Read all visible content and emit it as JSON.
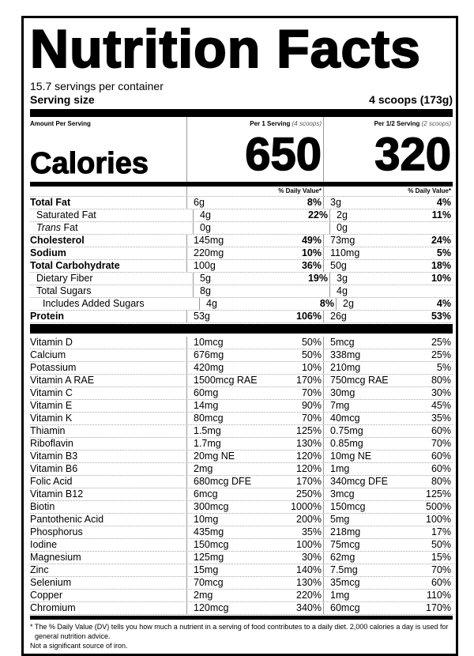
{
  "title": "Nutrition Facts",
  "servings_per_container": "15.7 servings per container",
  "serving_size_label": "Serving size",
  "serving_size_value": "4 scoops (173g)",
  "amount_per_serving": "Amount Per Serving",
  "calories_label": "Calories",
  "col1": {
    "header": "Per 1 Serving",
    "sub": "(4 scoops)",
    "calories": "650"
  },
  "col2": {
    "header": "Per 1/2 Serving",
    "sub": "(2 scoops)",
    "calories": "320"
  },
  "dv_header": "% Daily Value*",
  "nutrients": [
    {
      "name": "Total Fat",
      "bold": true,
      "indent": 0,
      "a": "6g",
      "adv": "8%",
      "b": "3g",
      "bdv": "4%"
    },
    {
      "name": "Saturated Fat",
      "indent": 1,
      "a": "4g",
      "adv": "22%",
      "b": "2g",
      "bdv": "11%"
    },
    {
      "name": "Trans Fat",
      "italic_prefix": "Trans",
      "rest": " Fat",
      "indent": 1,
      "a": "0g",
      "adv": "",
      "b": "0g",
      "bdv": ""
    },
    {
      "name": "Cholesterol",
      "bold": true,
      "indent": 0,
      "a": "145mg",
      "adv": "49%",
      "b": "73mg",
      "bdv": "24%"
    },
    {
      "name": "Sodium",
      "bold": true,
      "indent": 0,
      "a": "220mg",
      "adv": "10%",
      "b": "110mg",
      "bdv": "5%"
    },
    {
      "name": "Total Carbohydrate",
      "bold": true,
      "indent": 0,
      "a": "100g",
      "adv": "36%",
      "b": "50g",
      "bdv": "18%"
    },
    {
      "name": "Dietary Fiber",
      "indent": 1,
      "a": "5g",
      "adv": "19%",
      "b": "3g",
      "bdv": "10%"
    },
    {
      "name": "Total Sugars",
      "indent": 1,
      "a": "8g",
      "adv": "",
      "b": "4g",
      "bdv": ""
    },
    {
      "name": "Includes Added Sugars",
      "indent": 2,
      "a": "4g",
      "adv": "8%",
      "b": "2g",
      "bdv": "4%"
    },
    {
      "name": "Protein",
      "bold": true,
      "indent": 0,
      "a": "53g",
      "adv": "106%",
      "b": "26g",
      "bdv": "53%"
    }
  ],
  "vitamins": [
    [
      "Vitamin D",
      "10mcg",
      "50%",
      "5mcg",
      "25%"
    ],
    [
      "Calcium",
      "676mg",
      "50%",
      "338mg",
      "25%"
    ],
    [
      "Potassium",
      "420mg",
      "10%",
      "210mg",
      "5%"
    ],
    [
      "Vitamin A RAE",
      "1500mcg RAE",
      "170%",
      "750mcg RAE",
      "80%"
    ],
    [
      "Vitamin C",
      "60mg",
      "70%",
      "30mg",
      "30%"
    ],
    [
      "Vitamin E",
      "14mg",
      "90%",
      "7mg",
      "45%"
    ],
    [
      "Vitamin K",
      "80mcg",
      "70%",
      "40mcg",
      "35%"
    ],
    [
      "Thiamin",
      "1.5mg",
      "125%",
      "0.75mg",
      "60%"
    ],
    [
      "Riboflavin",
      "1.7mg",
      "130%",
      "0.85mg",
      "70%"
    ],
    [
      "Vitamin B3",
      "20mg NE",
      "120%",
      "10mg NE",
      "60%"
    ],
    [
      "Vitamin B6",
      "2mg",
      "120%",
      "1mg",
      "60%"
    ],
    [
      "Folic Acid",
      "680mcg DFE",
      "170%",
      "340mcg DFE",
      "80%"
    ],
    [
      "Vitamin B12",
      "6mcg",
      "250%",
      "3mcg",
      "125%"
    ],
    [
      "Biotin",
      "300mcg",
      "1000%",
      "150mcg",
      "500%"
    ],
    [
      "Pantothenic Acid",
      "10mg",
      "200%",
      "5mg",
      "100%"
    ],
    [
      "Phosphorus",
      "435mg",
      "35%",
      "218mg",
      "17%"
    ],
    [
      "Iodine",
      "150mcg",
      "100%",
      "75mcg",
      "50%"
    ],
    [
      "Magnesium",
      "125mg",
      "30%",
      "62mg",
      "15%"
    ],
    [
      "Zinc",
      "15mg",
      "140%",
      "7.5mg",
      "70%"
    ],
    [
      "Selenium",
      "70mcg",
      "130%",
      "35mcg",
      "60%"
    ],
    [
      "Copper",
      "2mg",
      "220%",
      "1mg",
      "110%"
    ],
    [
      "Chromium",
      "120mcg",
      "340%",
      "60mcg",
      "170%"
    ]
  ],
  "footnote": "* The % Daily Value (DV) tells you how much a nutrient in a serving of food contributes to a daily diet. 2,000 calories a day is used for general nutrition advice.",
  "footnote2": "Not a significant source of iron."
}
